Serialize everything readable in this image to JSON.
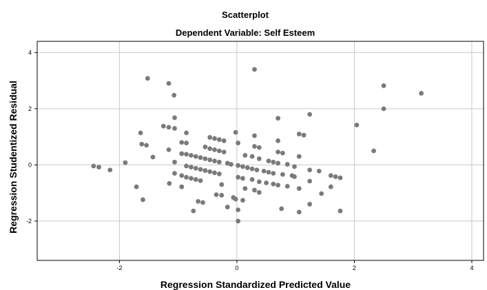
{
  "chart_data": {
    "type": "scatter",
    "title": "Scatterplot",
    "subtitle": "Dependent Variable: Self Esteem",
    "xlabel": "Regression Standardized Predicted Value",
    "ylabel": "Regression Studentized Residual",
    "xlim": [
      -3.4,
      4.2
    ],
    "ylim": [
      -3.4,
      4.4
    ],
    "xticks": [
      -2,
      0,
      2,
      4
    ],
    "yticks": [
      -2,
      0,
      2,
      4
    ],
    "xtick_labels": [
      "-2",
      "0",
      "2",
      "4"
    ],
    "ytick_labels": [
      "-2",
      "0",
      "2",
      "4"
    ],
    "grid": true,
    "point_color": "#7a7a7a",
    "grid_color": "#c8c8c8",
    "points": [
      [
        -2.44,
        -0.04
      ],
      [
        -2.35,
        -0.08
      ],
      [
        -2.16,
        -0.18
      ],
      [
        -1.9,
        0.08
      ],
      [
        -1.71,
        -0.78
      ],
      [
        -1.64,
        1.14
      ],
      [
        -1.62,
        0.74
      ],
      [
        -1.6,
        -1.24
      ],
      [
        -1.54,
        0.7
      ],
      [
        -1.52,
        3.08
      ],
      [
        -1.43,
        0.28
      ],
      [
        -1.25,
        1.38
      ],
      [
        -1.16,
        2.9
      ],
      [
        -1.16,
        1.34
      ],
      [
        -1.16,
        0.54
      ],
      [
        -1.15,
        -0.66
      ],
      [
        -1.07,
        2.48
      ],
      [
        -1.06,
        1.68
      ],
      [
        -1.06,
        1.3
      ],
      [
        -1.06,
        0.1
      ],
      [
        -1.06,
        -0.3
      ],
      [
        -0.94,
        0.8
      ],
      [
        -0.94,
        0.4
      ],
      [
        -0.94,
        -0.38
      ],
      [
        -0.94,
        -0.78
      ],
      [
        -0.86,
        1.14
      ],
      [
        -0.86,
        0.78
      ],
      [
        -0.86,
        0.38
      ],
      [
        -0.86,
        -0.04
      ],
      [
        -0.86,
        -0.44
      ],
      [
        -0.78,
        0.34
      ],
      [
        -0.78,
        -0.08
      ],
      [
        -0.78,
        -0.48
      ],
      [
        -0.74,
        -1.64
      ],
      [
        -0.7,
        0.3
      ],
      [
        -0.7,
        -0.12
      ],
      [
        -0.7,
        -0.52
      ],
      [
        -0.66,
        -1.3
      ],
      [
        -0.62,
        0.26
      ],
      [
        -0.62,
        -0.16
      ],
      [
        -0.62,
        -0.56
      ],
      [
        -0.58,
        -1.34
      ],
      [
        -0.54,
        0.64
      ],
      [
        -0.54,
        0.22
      ],
      [
        -0.54,
        -0.2
      ],
      [
        -0.46,
        0.98
      ],
      [
        -0.46,
        0.58
      ],
      [
        -0.46,
        0.18
      ],
      [
        -0.46,
        -0.24
      ],
      [
        -0.38,
        0.94
      ],
      [
        -0.38,
        0.54
      ],
      [
        -0.38,
        0.14
      ],
      [
        -0.38,
        -0.28
      ],
      [
        -0.35,
        -1.06
      ],
      [
        -0.3,
        0.9
      ],
      [
        -0.3,
        0.5
      ],
      [
        -0.3,
        0.1
      ],
      [
        -0.3,
        -0.32
      ],
      [
        -0.26,
        -1.08
      ],
      [
        -0.26,
        -0.7
      ],
      [
        -0.22,
        0.86
      ],
      [
        -0.22,
        0.46
      ],
      [
        -0.16,
        0.06
      ],
      [
        -0.16,
        -1.5
      ],
      [
        -0.1,
        0.02
      ],
      [
        -0.06,
        -1.16
      ],
      [
        -0.02,
        1.16
      ],
      [
        -0.02,
        -1.22
      ],
      [
        0.02,
        0.78
      ],
      [
        0.02,
        -0.02
      ],
      [
        0.02,
        -0.44
      ],
      [
        0.02,
        -1.6
      ],
      [
        0.02,
        -2.0
      ],
      [
        0.1,
        -0.06
      ],
      [
        0.1,
        -0.48
      ],
      [
        0.1,
        -1.26
      ],
      [
        0.14,
        0.34
      ],
      [
        0.14,
        -0.84
      ],
      [
        0.18,
        -0.1
      ],
      [
        0.26,
        0.3
      ],
      [
        0.26,
        -0.14
      ],
      [
        0.26,
        -0.52
      ],
      [
        0.3,
        3.4
      ],
      [
        0.3,
        1.04
      ],
      [
        0.3,
        0.66
      ],
      [
        0.3,
        -0.9
      ],
      [
        0.34,
        -0.18
      ],
      [
        0.38,
        0.62
      ],
      [
        0.38,
        0.22
      ],
      [
        0.38,
        -0.6
      ],
      [
        0.38,
        -0.98
      ],
      [
        0.46,
        -0.22
      ],
      [
        0.5,
        -0.64
      ],
      [
        0.54,
        0.14
      ],
      [
        0.54,
        -0.26
      ],
      [
        0.62,
        0.1
      ],
      [
        0.62,
        -0.3
      ],
      [
        0.62,
        -0.68
      ],
      [
        0.7,
        1.66
      ],
      [
        0.7,
        0.86
      ],
      [
        0.7,
        0.46
      ],
      [
        0.7,
        0.06
      ],
      [
        0.7,
        -0.72
      ],
      [
        0.76,
        -1.56
      ],
      [
        0.78,
        0.42
      ],
      [
        0.78,
        -0.34
      ],
      [
        0.86,
        0.02
      ],
      [
        0.86,
        -0.76
      ],
      [
        0.94,
        -0.38
      ],
      [
        0.98,
        -0.42
      ],
      [
        0.98,
        -0.06
      ],
      [
        1.06,
        1.1
      ],
      [
        1.06,
        0.3
      ],
      [
        1.06,
        -0.84
      ],
      [
        1.06,
        -1.68
      ],
      [
        1.14,
        1.06
      ],
      [
        1.24,
        1.8
      ],
      [
        1.24,
        -0.18
      ],
      [
        1.24,
        -0.58
      ],
      [
        1.24,
        -1.4
      ],
      [
        1.4,
        -0.22
      ],
      [
        1.44,
        -1.02
      ],
      [
        1.6,
        -0.38
      ],
      [
        1.6,
        -0.78
      ],
      [
        1.68,
        -0.42
      ],
      [
        1.76,
        -0.46
      ],
      [
        1.76,
        -1.64
      ],
      [
        2.04,
        1.42
      ],
      [
        2.33,
        0.5
      ],
      [
        2.5,
        2.82
      ],
      [
        2.5,
        2.0
      ],
      [
        3.14,
        2.55
      ]
    ]
  }
}
